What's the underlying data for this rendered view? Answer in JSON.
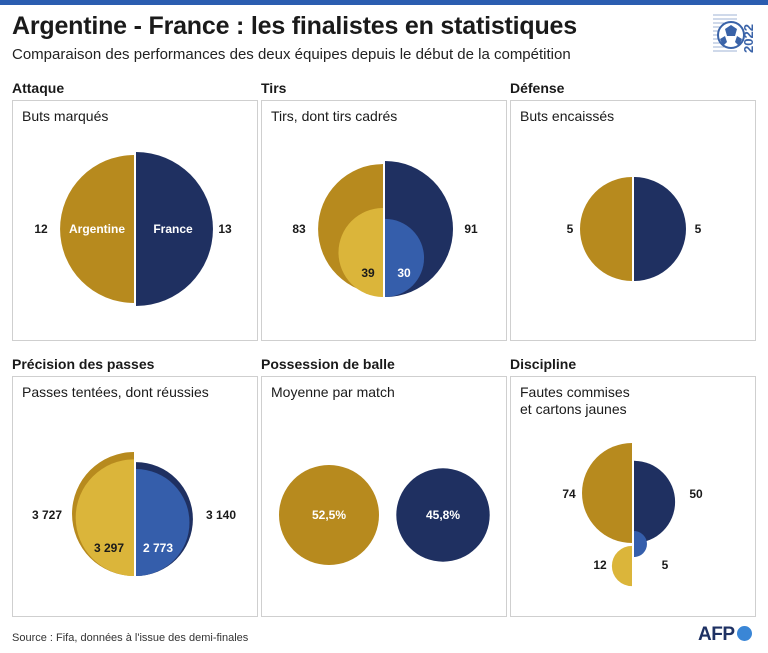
{
  "title": "Argentine - France : les finalistes en statistiques",
  "subtitle": "Comparaison des performances des deux équipes depuis le début de la compétition",
  "logo_year": "2022",
  "colors": {
    "argentina": "#b78a1e",
    "argentina_light": "#dbb53a",
    "france": "#1f3061",
    "france_light": "#355eab"
  },
  "sections": {
    "attaque": {
      "title": "Attaque",
      "label": "Buts marqués"
    },
    "tirs": {
      "title": "Tirs",
      "label": "Tirs, dont tirs cadrés"
    },
    "defense": {
      "title": "Défense",
      "label": "Buts encaissés"
    },
    "passes": {
      "title": "Précision des passes",
      "label": "Passes tentées, dont réussies"
    },
    "possession": {
      "title": "Possession de balle",
      "label": "Moyenne par match"
    },
    "discipline": {
      "title": "Discipline",
      "label_line1": "Fautes commises",
      "label_line2": "et cartons jaunes"
    }
  },
  "chart_data": [
    {
      "type": "pie",
      "title": "Attaque",
      "subtitle": "Buts marqués",
      "teams": [
        "Argentine",
        "France"
      ],
      "series": [
        {
          "name": "Buts marqués",
          "values": [
            12,
            13
          ]
        }
      ]
    },
    {
      "type": "pie",
      "title": "Tirs",
      "subtitle": "Tirs, dont tirs cadrés",
      "teams": [
        "Argentine",
        "France"
      ],
      "series": [
        {
          "values": [
            83,
            91
          ]
        },
        {
          "values": [
            39,
            30
          ]
        }
      ]
    },
    {
      "type": "pie",
      "title": "Défense",
      "subtitle": "Buts encaissés",
      "teams": [
        "Argentine",
        "France"
      ],
      "series": [
        {
          "values": [
            5,
            5
          ]
        }
      ]
    },
    {
      "type": "pie",
      "title": "Précision des passes",
      "subtitle": "Passes tentées, dont réussies",
      "teams": [
        "Argentine",
        "France"
      ],
      "series": [
        {
          "values": [
            3727,
            3140
          ],
          "labels": [
            "3 727",
            "3 140"
          ]
        },
        {
          "values": [
            3297,
            2773
          ],
          "labels": [
            "3 297",
            "2 773"
          ]
        }
      ]
    },
    {
      "type": "pie",
      "title": "Possession de balle",
      "subtitle": "Moyenne par match",
      "teams": [
        "Argentine",
        "France"
      ],
      "series": [
        {
          "values": [
            52.5,
            45.8
          ],
          "labels": [
            "52,5%",
            "45,8%"
          ]
        }
      ]
    },
    {
      "type": "pie",
      "title": "Discipline",
      "subtitle": "Fautes commises et cartons jaunes",
      "teams": [
        "Argentine",
        "France"
      ],
      "series": [
        {
          "values": [
            74,
            50
          ]
        },
        {
          "values": [
            12,
            5
          ]
        }
      ]
    }
  ],
  "source": "Source : Fifa, données à l'issue des demi-finales",
  "brand": "AFP"
}
